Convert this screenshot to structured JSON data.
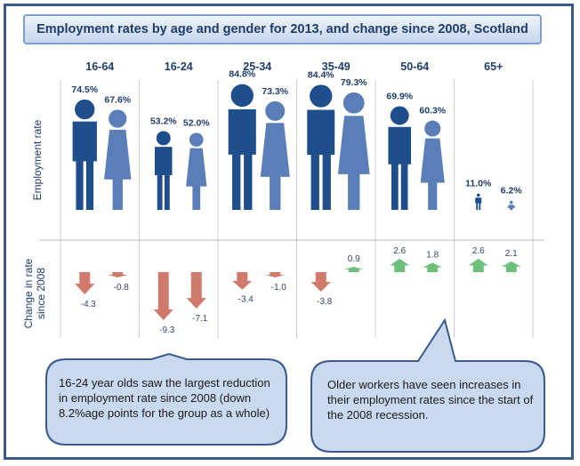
{
  "title": "Employment rates by age and gender for 2013, and change since 2008, Scotland",
  "colors": {
    "male": "#1f4e8c",
    "female": "#5a7fb8",
    "decrease": "#d07a6c",
    "increase": "#6cc07a",
    "axis_text": "#1f3c6b"
  },
  "chart_data": {
    "type": "bar",
    "categories": [
      "16-64",
      "16-24",
      "25-34",
      "35-49",
      "50-64",
      "65+"
    ],
    "ylabel_top": "Employment rate",
    "ylabel_bottom": "Change in rate since 2008",
    "series": [
      {
        "values": [
          74.5,
          53.2,
          84.8,
          84.4,
          69.9,
          11.0
        ],
        "labels": [
          "74.5%",
          "53.2%",
          "84.8%",
          "84.4%",
          "69.9%",
          "11.0%"
        ]
      },
      {
        "values": [
          67.6,
          52.0,
          73.3,
          79.3,
          60.3,
          6.2
        ],
        "labels": [
          "67.6%",
          "52.0%",
          "73.3%",
          "79.3%",
          "60.3%",
          "6.2%"
        ]
      }
    ],
    "change": [
      {
        "values": [
          -4.3,
          -9.3,
          -3.4,
          -3.8,
          2.6,
          2.6
        ],
        "labels": [
          "-4.3",
          "-9.3",
          "-3.4",
          "-3.8",
          "2.6",
          "2.6"
        ]
      },
      {
        "values": [
          -0.8,
          -7.1,
          -1.0,
          0.9,
          1.8,
          2.1
        ],
        "labels": [
          "-0.8",
          "-7.1",
          "-1.0",
          "0.9",
          "1.8",
          "2.1"
        ]
      }
    ]
  },
  "callouts": [
    {
      "text": "16-24 year olds saw the largest reduction in employment rate since 2008 (down 8.2%age points for the group as a whole)"
    },
    {
      "text": "Older workers have seen increases in their employment rates since the start of the 2008 recession."
    }
  ]
}
